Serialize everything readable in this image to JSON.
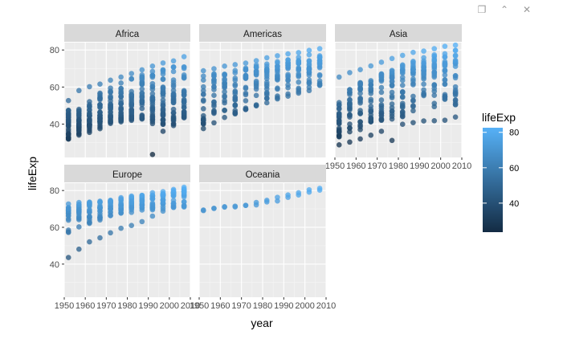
{
  "toolbar": {
    "buttons": [
      {
        "name": "save-icon",
        "glyph": "❐"
      },
      {
        "name": "expand-icon",
        "glyph": "⌃"
      },
      {
        "name": "close-icon",
        "glyph": "✕"
      }
    ]
  },
  "chart_data": {
    "type": "scatter",
    "facet_by": "continent",
    "xlabel": "year",
    "ylabel": "lifeExp",
    "xlim": [
      1950,
      2010
    ],
    "ylim": [
      22,
      84
    ],
    "x_ticks": [
      1950,
      1960,
      1970,
      1980,
      1990,
      2000,
      2010
    ],
    "y_ticks": [
      40,
      60,
      80
    ],
    "grid": true,
    "color_by": "lifeExp",
    "legend": {
      "title": "lifeExp",
      "position": "right",
      "labels": [
        40,
        60,
        80
      ],
      "low_color": "#132B43",
      "high_color": "#56B1F7",
      "limits": [
        23.6,
        82.6
      ]
    },
    "years": [
      1952,
      1957,
      1962,
      1967,
      1972,
      1977,
      1982,
      1987,
      1992,
      1997,
      2002,
      2007
    ],
    "panels": [
      {
        "name": "Africa",
        "q05": [
          31.5,
          33.5,
          35.5,
          37.5,
          39,
          41,
          42,
          42.5,
          40,
          39.5,
          39,
          42
        ],
        "q25": [
          35.5,
          37.5,
          39.5,
          41.5,
          43.5,
          45,
          46.5,
          47,
          46.5,
          46,
          45.5,
          48
        ],
        "q50": [
          38.8,
          40.6,
          42.6,
          44.7,
          47.0,
          49.3,
          50.8,
          51.6,
          52.4,
          52.8,
          51.2,
          52.9
        ],
        "q75": [
          42.5,
          45,
          47,
          49.5,
          52,
          54.5,
          56,
          58,
          59,
          58,
          58,
          60
        ],
        "q95": [
          47.5,
          51,
          54,
          57,
          60,
          62.5,
          65,
          67,
          69,
          70,
          71,
          73
        ],
        "extra": [
          [
            1952,
            52.7
          ],
          [
            1957,
            58.1
          ],
          [
            1962,
            60.2
          ],
          [
            1967,
            61.6
          ],
          [
            1972,
            63.7
          ],
          [
            1977,
            65.4
          ],
          [
            1982,
            67.3
          ],
          [
            1987,
            69.3
          ],
          [
            1992,
            71.3
          ],
          [
            1997,
            73.0
          ],
          [
            2002,
            74.1
          ],
          [
            2007,
            76.4
          ],
          [
            1992,
            23.6
          ],
          [
            1997,
            36.1
          ],
          [
            2002,
            39.2
          ]
        ]
      },
      {
        "name": "Americas",
        "q05": [
          40,
          42,
          44,
          45.5,
          47,
          49,
          51.5,
          54,
          56,
          57.5,
          58.5,
          60
        ],
        "q25": [
          45,
          48.5,
          50.5,
          53,
          55.5,
          57.5,
          60,
          62,
          64,
          65.5,
          66.5,
          68
        ],
        "q50": [
          54.7,
          56.1,
          58.3,
          60.5,
          63.4,
          66.4,
          67.4,
          69.5,
          69.9,
          72.1,
          72.0,
          72.9
        ],
        "q75": [
          60,
          62,
          63.5,
          65,
          66.5,
          68.5,
          70,
          71.5,
          72.5,
          73.5,
          74.5,
          75.5
        ],
        "q95": [
          66,
          67.5,
          69,
          70,
          70.5,
          72,
          73.5,
          74.5,
          75.5,
          77,
          78,
          79
        ],
        "extra": [
          [
            1952,
            68.8
          ],
          [
            1957,
            69.9
          ],
          [
            1962,
            71.3
          ],
          [
            1967,
            72.1
          ],
          [
            1972,
            72.9
          ],
          [
            1977,
            74.2
          ],
          [
            1982,
            75.8
          ],
          [
            1987,
            76.9
          ],
          [
            1992,
            77.9
          ],
          [
            1997,
            78.6
          ],
          [
            2002,
            79.8
          ],
          [
            2007,
            80.7
          ],
          [
            1952,
            37.6
          ],
          [
            1957,
            40.7
          ],
          [
            1962,
            43.6
          ],
          [
            1967,
            46.2
          ],
          [
            1972,
            48.0
          ],
          [
            1977,
            49.9
          ],
          [
            1982,
            51.5
          ],
          [
            1987,
            53.6
          ],
          [
            1992,
            55.1
          ],
          [
            1997,
            56.7
          ],
          [
            2002,
            58.1
          ],
          [
            2007,
            60.9
          ]
        ]
      },
      {
        "name": "Asia",
        "q05": [
          33,
          35,
          37,
          39,
          41,
          42,
          44,
          45,
          47,
          48,
          49,
          50
        ],
        "q25": [
          37,
          40,
          42,
          45,
          47,
          49,
          52,
          55,
          57,
          59,
          60,
          61
        ],
        "q50": [
          44.9,
          48.3,
          49.3,
          53.7,
          56.2,
          60.8,
          63.7,
          66.3,
          68.7,
          70.3,
          71.0,
          72.4
        ],
        "q75": [
          50,
          54,
          57,
          60,
          63,
          66,
          68.5,
          70,
          71,
          72,
          73,
          74
        ],
        "q95": [
          58,
          61,
          63.5,
          66,
          68.5,
          70.5,
          72.5,
          74,
          76,
          77.5,
          79,
          80
        ],
        "extra": [
          [
            1952,
            65.4
          ],
          [
            1957,
            67.8
          ],
          [
            1962,
            69.4
          ],
          [
            1967,
            71.4
          ],
          [
            1972,
            73.4
          ],
          [
            1977,
            75.4
          ],
          [
            1982,
            77.1
          ],
          [
            1987,
            78.7
          ],
          [
            1992,
            79.4
          ],
          [
            1997,
            80.7
          ],
          [
            2002,
            82.0
          ],
          [
            2007,
            82.6
          ],
          [
            1952,
            28.8
          ],
          [
            1957,
            30.3
          ],
          [
            1962,
            32.0
          ],
          [
            1967,
            34.0
          ],
          [
            1972,
            36.1
          ],
          [
            1977,
            31.2
          ],
          [
            1982,
            39.9
          ],
          [
            1987,
            40.8
          ],
          [
            1992,
            41.7
          ],
          [
            1997,
            41.8
          ],
          [
            2002,
            42.1
          ],
          [
            2007,
            43.8
          ]
        ]
      },
      {
        "name": "Europe",
        "q05": [
          55,
          59,
          62,
          64,
          66,
          67,
          68,
          69,
          69.5,
          70,
          70.5,
          71
        ],
        "q25": [
          61,
          64,
          66,
          68,
          69,
          70,
          71,
          71,
          72,
          72.5,
          73.5,
          74
        ],
        "q50": [
          65.9,
          67.7,
          69.5,
          70.6,
          70.9,
          72.3,
          73.5,
          74.8,
          75.5,
          76.1,
          77.5,
          78.6
        ],
        "q75": [
          69,
          70.5,
          71.5,
          72.5,
          73.5,
          74.5,
          75.5,
          76.5,
          77,
          77.5,
          78.5,
          79.5
        ],
        "q95": [
          71.5,
          72.5,
          73.5,
          74,
          74.5,
          75.5,
          76.5,
          77.5,
          78,
          78.5,
          80,
          81
        ],
        "extra": [
          [
            1952,
            72.7
          ],
          [
            1957,
            73.5
          ],
          [
            1962,
            73.7
          ],
          [
            1967,
            74.2
          ],
          [
            1972,
            74.7
          ],
          [
            1977,
            76.1
          ],
          [
            1982,
            77.0
          ],
          [
            1987,
            77.4
          ],
          [
            1992,
            78.8
          ],
          [
            1997,
            79.4
          ],
          [
            2002,
            80.6
          ],
          [
            2007,
            81.8
          ],
          [
            1952,
            43.6
          ],
          [
            1957,
            48.1
          ],
          [
            1962,
            52.1
          ],
          [
            1967,
            54.3
          ],
          [
            1972,
            57.0
          ],
          [
            1977,
            59.5
          ],
          [
            1982,
            61.0
          ],
          [
            1987,
            63.1
          ],
          [
            1992,
            66.1
          ],
          [
            1997,
            68.8
          ],
          [
            2002,
            70.8
          ],
          [
            2007,
            71.8
          ]
        ]
      },
      {
        "name": "Oceania",
        "points": [
          [
            1952,
            69.1
          ],
          [
            1952,
            69.4
          ],
          [
            1957,
            70.3
          ],
          [
            1957,
            70.3
          ],
          [
            1962,
            71.0
          ],
          [
            1962,
            71.2
          ],
          [
            1967,
            71.1
          ],
          [
            1967,
            71.5
          ],
          [
            1972,
            71.9
          ],
          [
            1972,
            71.9
          ],
          [
            1977,
            72.2
          ],
          [
            1977,
            73.5
          ],
          [
            1982,
            73.8
          ],
          [
            1982,
            74.7
          ],
          [
            1987,
            74.3
          ],
          [
            1987,
            76.3
          ],
          [
            1992,
            76.3
          ],
          [
            1992,
            77.6
          ],
          [
            1997,
            77.6
          ],
          [
            1997,
            78.8
          ],
          [
            2002,
            79.1
          ],
          [
            2002,
            80.4
          ],
          [
            2007,
            80.2
          ],
          [
            2007,
            81.2
          ]
        ]
      }
    ]
  }
}
